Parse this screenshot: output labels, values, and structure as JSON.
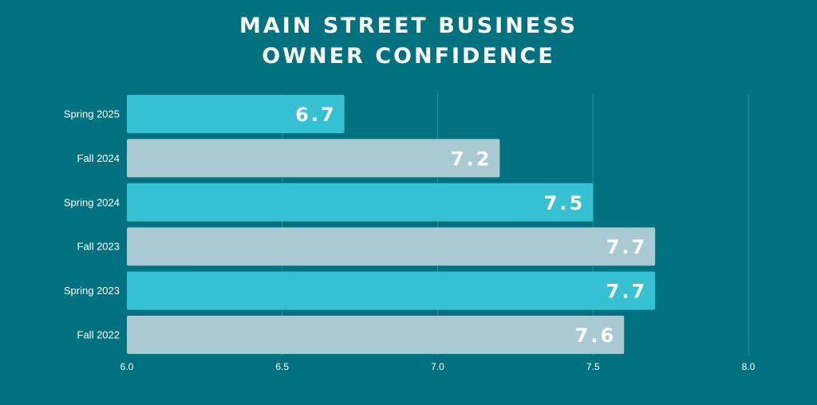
{
  "chart_data": {
    "type": "bar",
    "orientation": "horizontal",
    "title_lines": [
      "MAIN STREET BUSINESS",
      "OWNER CONFIDENCE"
    ],
    "categories": [
      "Spring 2025",
      "Fall 2024",
      "Spring 2024",
      "Fall 2023",
      "Spring 2023",
      "Fall 2022"
    ],
    "values": [
      6.7,
      7.2,
      7.5,
      7.7,
      7.7,
      7.6
    ],
    "value_labels": [
      "6.7",
      "7.2",
      "7.5",
      "7.7",
      "7.7",
      "7.6"
    ],
    "bar_colors": [
      "#35c1d2",
      "#a9cad3",
      "#35c1d2",
      "#a9cad3",
      "#35c1d2",
      "#a9cad3"
    ],
    "xlim": [
      6.0,
      8.0
    ],
    "xticks": [
      "6.0",
      "6.5",
      "7.0",
      "7.5",
      "8.0"
    ],
    "xlabel": "",
    "ylabel": "",
    "grid": true,
    "background": "#00717f"
  }
}
